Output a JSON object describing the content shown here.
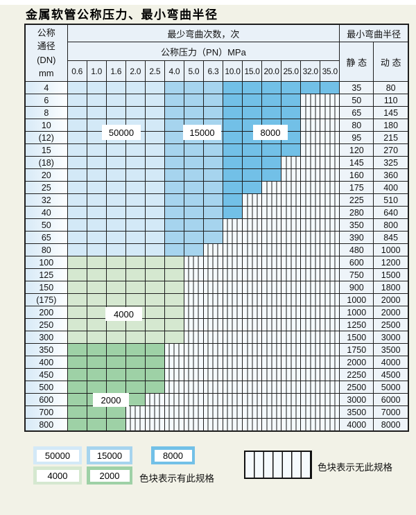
{
  "page": {
    "title": "金属软管公称压力、最小弯曲半径"
  },
  "colors": {
    "c50000": "#d3e9f7",
    "c15000": "#a6d4ee",
    "c8000": "#72c0e7",
    "c4000": "#d5e8d0",
    "c2000": "#9ed1a6",
    "line": "#1d1d1d",
    "hdrbg": "#e9f1f8",
    "nospecbg": "#f5fafd",
    "pagebg": "#f2f2e7"
  },
  "table": {
    "header": {
      "dn_lines": [
        "公称",
        "通径",
        "(DN)",
        "mm"
      ],
      "cycles_label": "最少弯曲次数，次",
      "radius_label": "最小弯曲半径",
      "pressure_label": "公称压力（PN）MPa",
      "static_label": "静 态",
      "dynamic_label": "动 态",
      "pressures": [
        "0.6",
        "1.0",
        "1.6",
        "2.0",
        "2.5",
        "4.0",
        "5.0",
        "6.3",
        "10.0",
        "15.0",
        "20.0",
        "25.0",
        "32.0",
        "35.0"
      ]
    },
    "blue_zones": [
      {
        "from": 0,
        "to": 4,
        "cycles": "50000"
      },
      {
        "from": 5,
        "to": 7,
        "cycles": "15000"
      },
      {
        "from": 8,
        "to": 13,
        "cycles": "8000"
      }
    ],
    "overlays": [
      "50000",
      "15000",
      "8000",
      "4000",
      "2000"
    ],
    "rows": [
      {
        "dn": "4",
        "spec_cols": 14,
        "band": "blue",
        "static": "35",
        "dynamic": "80"
      },
      {
        "dn": "6",
        "spec_cols": 12,
        "band": "blue",
        "static": "50",
        "dynamic": "110"
      },
      {
        "dn": "8",
        "spec_cols": 12,
        "band": "blue",
        "static": "65",
        "dynamic": "145"
      },
      {
        "dn": "10",
        "spec_cols": 12,
        "band": "blue",
        "static": "80",
        "dynamic": "180"
      },
      {
        "dn": "(12)",
        "spec_cols": 12,
        "band": "blue",
        "static": "95",
        "dynamic": "215"
      },
      {
        "dn": "15",
        "spec_cols": 12,
        "band": "blue",
        "static": "120",
        "dynamic": "270"
      },
      {
        "dn": "(18)",
        "spec_cols": 11,
        "band": "blue",
        "static": "145",
        "dynamic": "325"
      },
      {
        "dn": "20",
        "spec_cols": 11,
        "band": "blue",
        "static": "160",
        "dynamic": "360"
      },
      {
        "dn": "25",
        "spec_cols": 10,
        "band": "blue",
        "static": "175",
        "dynamic": "400"
      },
      {
        "dn": "32",
        "spec_cols": 9,
        "band": "blue",
        "static": "225",
        "dynamic": "510"
      },
      {
        "dn": "40",
        "spec_cols": 9,
        "band": "blue",
        "static": "280",
        "dynamic": "640"
      },
      {
        "dn": "50",
        "spec_cols": 8,
        "band": "blue",
        "static": "350",
        "dynamic": "800"
      },
      {
        "dn": "65",
        "spec_cols": 8,
        "band": "blue",
        "static": "390",
        "dynamic": "845"
      },
      {
        "dn": "80",
        "spec_cols": 7,
        "band": "blue",
        "static": "480",
        "dynamic": "1000"
      },
      {
        "dn": "100",
        "spec_cols": 6,
        "band": "4000",
        "static": "600",
        "dynamic": "1200"
      },
      {
        "dn": "125",
        "spec_cols": 6,
        "band": "4000",
        "static": "750",
        "dynamic": "1500"
      },
      {
        "dn": "150",
        "spec_cols": 6,
        "band": "4000",
        "static": "900",
        "dynamic": "1800"
      },
      {
        "dn": "(175)",
        "spec_cols": 6,
        "band": "4000",
        "static": "1000",
        "dynamic": "2000"
      },
      {
        "dn": "200",
        "spec_cols": 6,
        "band": "4000",
        "static": "1000",
        "dynamic": "2000"
      },
      {
        "dn": "250",
        "spec_cols": 6,
        "band": "4000",
        "static": "1250",
        "dynamic": "2500"
      },
      {
        "dn": "300",
        "spec_cols": 6,
        "band": "4000",
        "static": "1500",
        "dynamic": "3000"
      },
      {
        "dn": "350",
        "spec_cols": 5,
        "band": "2000",
        "static": "1750",
        "dynamic": "3500"
      },
      {
        "dn": "400",
        "spec_cols": 5,
        "band": "2000",
        "static": "2000",
        "dynamic": "4000"
      },
      {
        "dn": "450",
        "spec_cols": 5,
        "band": "2000",
        "static": "2250",
        "dynamic": "4500"
      },
      {
        "dn": "500",
        "spec_cols": 5,
        "band": "2000",
        "static": "2500",
        "dynamic": "5000"
      },
      {
        "dn": "600",
        "spec_cols": 4,
        "band": "2000",
        "static": "3000",
        "dynamic": "6000"
      },
      {
        "dn": "700",
        "spec_cols": 3,
        "band": "2000",
        "static": "3500",
        "dynamic": "7000"
      },
      {
        "dn": "800",
        "spec_cols": 3,
        "band": "2000",
        "static": "4000",
        "dynamic": "8000"
      }
    ]
  },
  "legend": {
    "swatches": [
      {
        "label": "50000",
        "color_key": "c50000"
      },
      {
        "label": "15000",
        "color_key": "c15000"
      },
      {
        "label": "8000",
        "color_key": "c8000"
      },
      {
        "label": "4000",
        "color_key": "c4000"
      },
      {
        "label": "2000",
        "color_key": "c2000"
      }
    ],
    "has_spec_note": "色块表示有此规格",
    "no_spec_note": "色块表示无此规格"
  }
}
